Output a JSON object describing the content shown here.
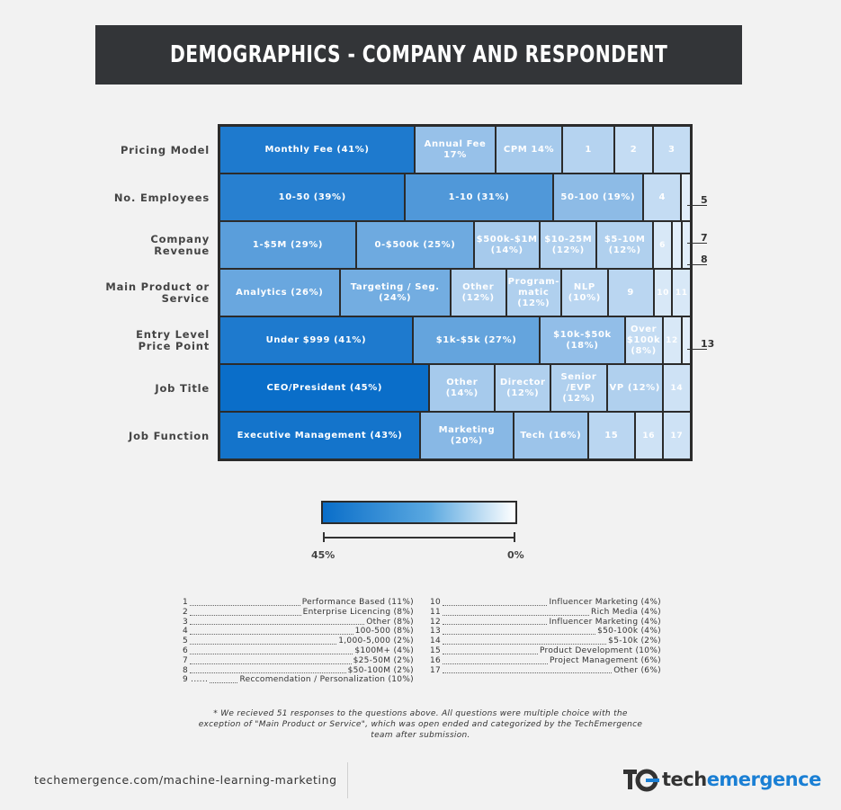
{
  "title": "DEMOGRAPHICS - COMPANY AND RESPONDENT",
  "chart_data": {
    "type": "table",
    "rows": [
      {
        "label": "Pricing Model",
        "cells": [
          {
            "text": "Monthly Fee (41%)",
            "pct": 41
          },
          {
            "text": "Annual Fee 17%",
            "pct": 17
          },
          {
            "text": "CPM 14%",
            "pct": 14
          },
          {
            "text": "1",
            "pct": 11
          },
          {
            "text": "2",
            "pct": 8
          },
          {
            "text": "3",
            "pct": 8
          }
        ]
      },
      {
        "label": "No. Employees",
        "cells": [
          {
            "text": "10-50 (39%)",
            "pct": 39
          },
          {
            "text": "1-10 (31%)",
            "pct": 31
          },
          {
            "text": "50-100 (19%)",
            "pct": 19
          },
          {
            "text": "4",
            "pct": 8
          },
          {
            "text": "",
            "pct": 2
          }
        ]
      },
      {
        "label": "Company Revenue",
        "cells": [
          {
            "text": "1-$5M (29%)",
            "pct": 29
          },
          {
            "text": "0-$500k (25%)",
            "pct": 25
          },
          {
            "text": "$500k-$1M (14%)",
            "pct": 14
          },
          {
            "text": "$10-25M (12%)",
            "pct": 12
          },
          {
            "text": "$5-10M (12%)",
            "pct": 12
          },
          {
            "text": "6",
            "pct": 4
          },
          {
            "text": "",
            "pct": 2
          },
          {
            "text": "",
            "pct": 2
          }
        ]
      },
      {
        "label": "Main Product or Service",
        "cells": [
          {
            "text": "Analytics (26%)",
            "pct": 26
          },
          {
            "text": "Targeting / Seg. (24%)",
            "pct": 24
          },
          {
            "text": "Other (12%)",
            "pct": 12
          },
          {
            "text": "Program- matic (12%)",
            "pct": 12
          },
          {
            "text": "NLP (10%)",
            "pct": 10
          },
          {
            "text": "9",
            "pct": 10
          },
          {
            "text": "10",
            "pct": 4
          },
          {
            "text": "11",
            "pct": 4
          }
        ]
      },
      {
        "label": "Entry Level Price Point",
        "cells": [
          {
            "text": "Under $999 (41%)",
            "pct": 41
          },
          {
            "text": "$1k-$5k (27%)",
            "pct": 27
          },
          {
            "text": "$10k-$50k (18%)",
            "pct": 18
          },
          {
            "text": "Over $100k (8%)",
            "pct": 8
          },
          {
            "text": "12",
            "pct": 4
          },
          {
            "text": "",
            "pct": 2
          }
        ]
      },
      {
        "label": "Job Title",
        "cells": [
          {
            "text": "CEO/President (45%)",
            "pct": 45
          },
          {
            "text": "Other (14%)",
            "pct": 14
          },
          {
            "text": "Director (12%)",
            "pct": 12
          },
          {
            "text": "Senior /EVP (12%)",
            "pct": 12
          },
          {
            "text": "VP (12%)",
            "pct": 12
          },
          {
            "text": "14",
            "pct": 6
          }
        ]
      },
      {
        "label": "Job Function",
        "cells": [
          {
            "text": "Executive Management (43%)",
            "pct": 43
          },
          {
            "text": "Marketing (20%)",
            "pct": 20
          },
          {
            "text": "Tech (16%)",
            "pct": 16
          },
          {
            "text": "15",
            "pct": 10
          },
          {
            "text": "16",
            "pct": 6
          },
          {
            "text": "17",
            "pct": 6
          }
        ]
      }
    ],
    "color_scale": {
      "min_label": "0%",
      "max_label": "45%",
      "min_color": "#ffffff",
      "max_color": "#0a6ec9"
    },
    "callouts": [
      "5",
      "7",
      "8",
      "13"
    ]
  },
  "legend_left": [
    {
      "num": "1",
      "text": "Performance Based (11%)"
    },
    {
      "num": "2",
      "text": "Enterprise Licencing (8%)"
    },
    {
      "num": "3",
      "text": "Other (8%)"
    },
    {
      "num": "4",
      "text": "100-500 (8%)"
    },
    {
      "num": "5",
      "text": "1,000-5,000 (2%)"
    },
    {
      "num": "6",
      "text": "$100M+ (4%)"
    },
    {
      "num": "7",
      "text": "$25-50M (2%)"
    },
    {
      "num": "8",
      "text": "$50-100M (2%)"
    },
    {
      "num": "9 ......",
      "text": "Reccomendation / Personalization (10%)"
    }
  ],
  "legend_right": [
    {
      "num": "10",
      "text": "Influencer Marketing (4%)"
    },
    {
      "num": "11",
      "text": "Rich Media (4%)"
    },
    {
      "num": "12",
      "text": "Influencer Marketing (4%)"
    },
    {
      "num": "13",
      "text": "$50-100k (4%)"
    },
    {
      "num": "14",
      "text": "$5-10k (2%)"
    },
    {
      "num": "15",
      "text": "Product Development (10%)"
    },
    {
      "num": "16",
      "text": "Project Management (6%)"
    },
    {
      "num": "17",
      "text": "Other (6%)"
    }
  ],
  "footnote": "* We recieved 51 responses to the questions above. All questions were multiple choice with the exception of \"Main Product or Service\", which was open ended and categorized by the TechEmergence team after submission.",
  "footer": {
    "url": "techemergence.com/machine-learning-marketing",
    "logo_part1": "tech",
    "logo_part2": "emergence"
  }
}
